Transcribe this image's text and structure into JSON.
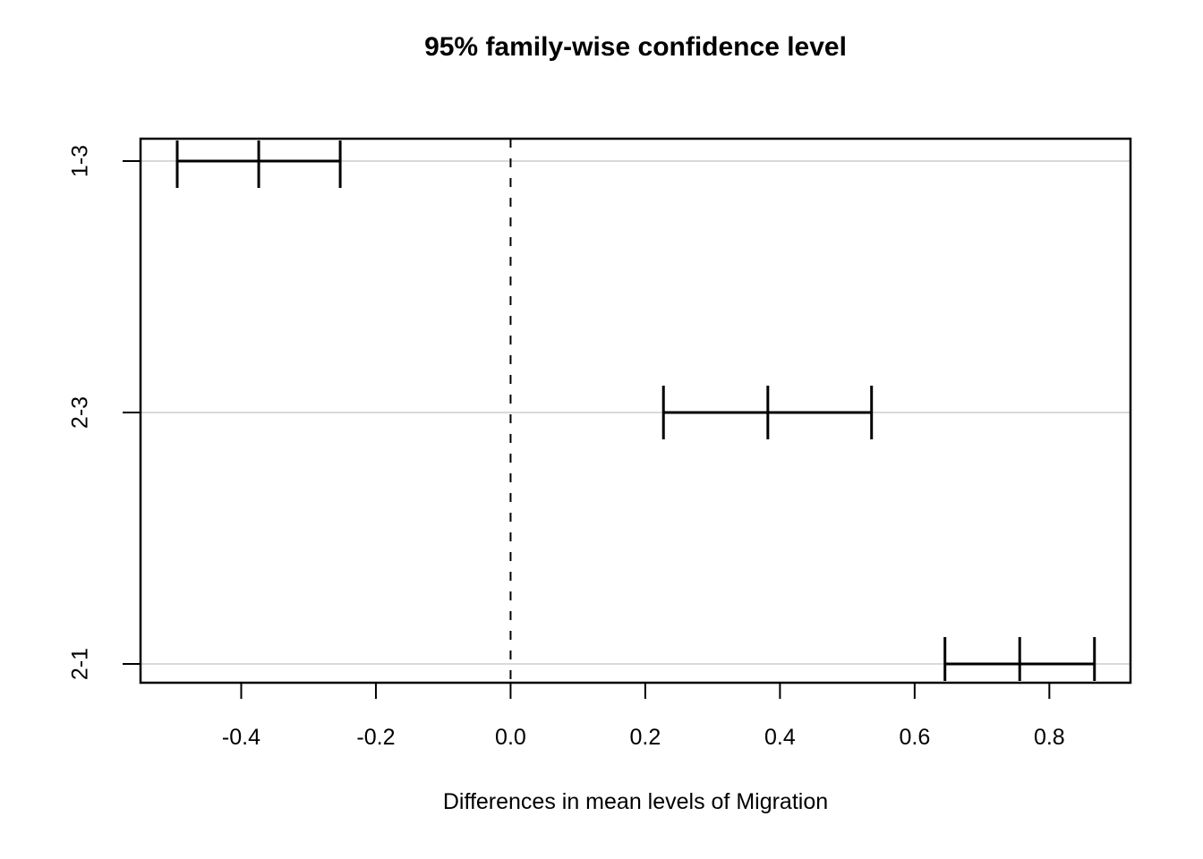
{
  "title": "95% family-wise confidence level",
  "xlabel": "Differences in mean levels of Migration",
  "chart_data": {
    "type": "interval",
    "title": "95% family-wise confidence level",
    "xlabel": "Differences in mean levels of Migration",
    "ylabel": "",
    "comparisons": [
      {
        "label": "1-3",
        "diff": -0.374,
        "lwr": -0.495,
        "upr": -0.253
      },
      {
        "label": "2-3",
        "diff": 0.382,
        "lwr": 0.227,
        "upr": 0.536
      },
      {
        "label": "2-1",
        "diff": 0.756,
        "lwr": 0.645,
        "upr": 0.867
      }
    ],
    "x_ticks": [
      -0.4,
      -0.2,
      0.0,
      0.2,
      0.4,
      0.6,
      0.8
    ],
    "x_tick_labels": [
      "-0.4",
      "-0.2",
      "0.0",
      "0.2",
      "0.4",
      "0.6",
      "0.8"
    ],
    "y_tick_labels": [
      "1-3",
      "2-3",
      "2-1"
    ],
    "xlim": [
      -0.5495,
      0.9205
    ],
    "reference_line_x": 0,
    "reference_line_style": "dashed",
    "grid": true,
    "legend": "none",
    "colors": {
      "interval": "#000000",
      "grid": "#d9d9d9",
      "reference": "#000000",
      "axis": "#000000",
      "background": "#ffffff"
    }
  }
}
